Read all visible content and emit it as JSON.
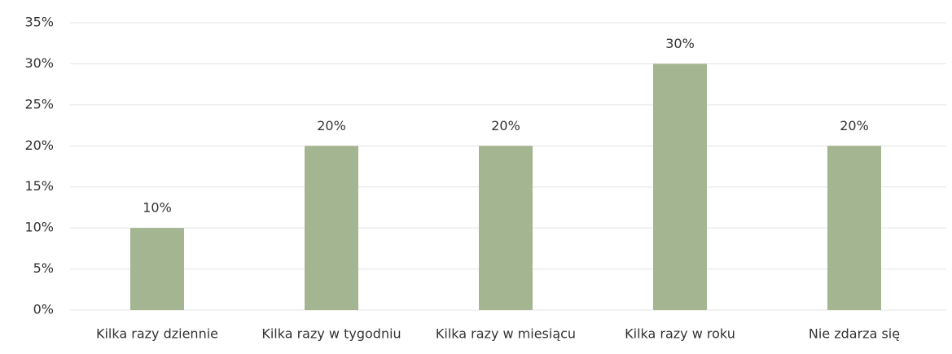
{
  "chart_data": {
    "type": "bar",
    "categories": [
      "Kilka razy dziennie",
      "Kilka razy w tygodniu",
      "Kilka razy w miesiącu",
      "Kilka razy w roku",
      "Nie zdarza się"
    ],
    "values": [
      10,
      20,
      20,
      30,
      20
    ],
    "value_labels": [
      "10%",
      "20%",
      "20%",
      "30%",
      "20%"
    ],
    "color": "#a4b592",
    "ylim": [
      0,
      35
    ],
    "yticks": [
      {
        "value": 0,
        "label": "0%"
      },
      {
        "value": 5,
        "label": "5%"
      },
      {
        "value": 10,
        "label": "10%"
      },
      {
        "value": 15,
        "label": "15%"
      },
      {
        "value": 20,
        "label": "20%"
      },
      {
        "value": 25,
        "label": "25%"
      },
      {
        "value": 30,
        "label": "30%"
      },
      {
        "value": 35,
        "label": "35%"
      }
    ],
    "grid": true
  }
}
